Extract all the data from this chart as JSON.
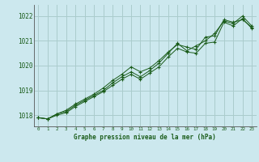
{
  "title": "Graphe pression niveau de la mer (hPa)",
  "bg_color": "#cce8ee",
  "grid_color": "#aacccc",
  "line_color": "#1a5c1a",
  "marker_color": "#1a5c1a",
  "xlim": [
    -0.5,
    23.5
  ],
  "ylim": [
    1017.55,
    1022.45
  ],
  "yticks": [
    1018,
    1019,
    1020,
    1021,
    1022
  ],
  "xticks": [
    0,
    1,
    2,
    3,
    4,
    5,
    6,
    7,
    8,
    9,
    10,
    11,
    12,
    13,
    14,
    15,
    16,
    17,
    18,
    19,
    20,
    21,
    22,
    23
  ],
  "series": [
    [
      1017.9,
      1017.85,
      1018.05,
      1018.15,
      1018.4,
      1018.6,
      1018.8,
      1019.0,
      1019.3,
      1019.55,
      1019.75,
      1019.55,
      1019.8,
      1020.1,
      1020.5,
      1020.9,
      1020.6,
      1020.8,
      1021.0,
      1021.3,
      1021.8,
      1021.7,
      1022.0,
      1021.6
    ],
    [
      1017.9,
      1017.85,
      1018.05,
      1018.2,
      1018.45,
      1018.65,
      1018.85,
      1019.1,
      1019.4,
      1019.65,
      1019.95,
      1019.75,
      1019.9,
      1020.2,
      1020.55,
      1020.85,
      1020.75,
      1020.65,
      1021.15,
      1021.2,
      1021.85,
      1021.75,
      1021.85,
      1021.55
    ],
    [
      1017.9,
      1017.85,
      1018.0,
      1018.1,
      1018.35,
      1018.55,
      1018.75,
      1018.95,
      1019.2,
      1019.45,
      1019.65,
      1019.45,
      1019.7,
      1019.95,
      1020.35,
      1020.7,
      1020.55,
      1020.5,
      1020.9,
      1020.95,
      1021.75,
      1021.6,
      1021.9,
      1021.5
    ]
  ]
}
